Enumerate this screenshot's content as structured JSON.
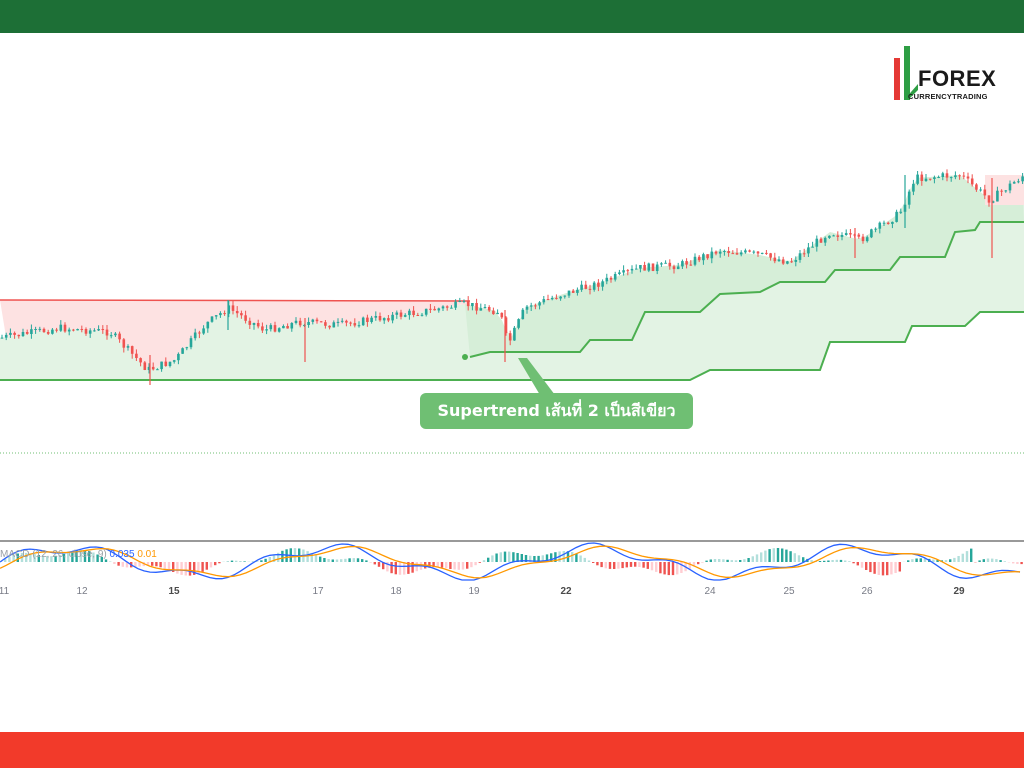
{
  "brand": {
    "top_bar_color": "#1d6f36",
    "bottom_bar_color": "#f23a2a",
    "logo_word": "FOREX",
    "logo_sub": "CURRENCYTRADING"
  },
  "callout": {
    "text": "Supertrend เส้นที่ 2 เป็นสีเขียว",
    "color": "#6fbf73"
  },
  "macd_legend": {
    "name": "MACD (12, 26, close, 9)",
    "value1": "0.035",
    "value2": "0.01"
  },
  "colors": {
    "up_candle": "#26a69a",
    "down_candle": "#ef5350",
    "supertrend_up": "#4caf50",
    "supertrend_down": "#ef5350",
    "fill_up": "#e3f3e4",
    "fill_down": "#fde2e2",
    "macd_line": "#2962ff",
    "signal_line": "#ff9800"
  },
  "chart_data": {
    "type": "candlestick",
    "title": "",
    "x_dates": [
      "11",
      "12",
      "15",
      "17",
      "18",
      "19",
      "22",
      "24",
      "25",
      "26",
      "29"
    ],
    "bold_dates": [
      "15",
      "22",
      "29"
    ],
    "indicators": [
      "Supertrend",
      "Supertrend",
      "MACD (12, 26, close, 9)"
    ],
    "grid": false
  }
}
